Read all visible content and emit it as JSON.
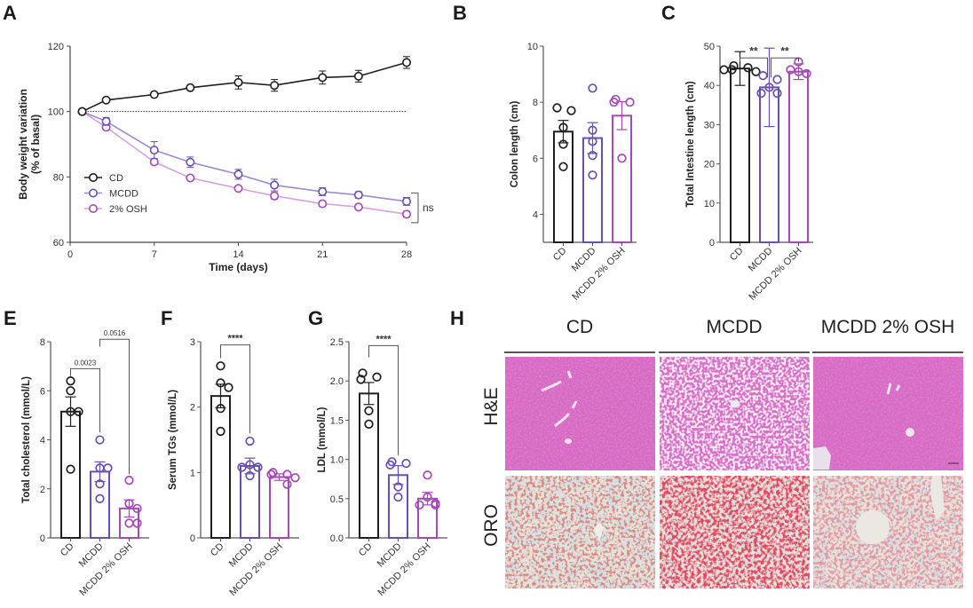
{
  "colors": {
    "CD": "#1f1f1f",
    "MCDD": "#6a4fb3",
    "OSH": "#a648b8",
    "OSH_line": "#d9a0e0",
    "MCDD_line": "#9d8bd0"
  },
  "panels": {
    "A": "A",
    "B": "B",
    "C": "C",
    "E": "E",
    "F": "F",
    "G": "G",
    "H": "H"
  },
  "chart_data": [
    {
      "id": "A",
      "type": "line",
      "title": "",
      "xlabel": "Time (days)",
      "ylabel": "Body weight variation (% of basal)",
      "ylabel_lines": [
        "Body weight variation",
        "(% of basal)"
      ],
      "xlim": [
        0,
        28
      ],
      "ylim": [
        60,
        120
      ],
      "xticks": [
        0,
        7,
        14,
        21,
        28
      ],
      "yticks": [
        60,
        80,
        100,
        120
      ],
      "x": [
        1,
        3,
        7,
        10,
        14,
        17,
        21,
        24,
        28
      ],
      "reference_line": 100,
      "legend": "bottom-left",
      "series": [
        {
          "name": "CD",
          "values": [
            100,
            103.5,
            105.2,
            107.3,
            108.9,
            108.0,
            110.4,
            110.8,
            115.0
          ],
          "err": [
            0,
            0.6,
            0.6,
            0.6,
            2.0,
            1.8,
            2.0,
            1.8,
            1.8
          ]
        },
        {
          "name": "MCDD",
          "values": [
            100,
            97.0,
            88.2,
            84.5,
            80.8,
            77.5,
            75.5,
            74.5,
            72.5
          ],
          "err": [
            0,
            1.2,
            2.6,
            1.6,
            1.5,
            1.8,
            1.2,
            1.0,
            1.2
          ]
        },
        {
          "name": "2% OSH",
          "values": [
            100,
            95.2,
            84.6,
            79.7,
            76.5,
            74.2,
            71.8,
            70.8,
            68.6
          ],
          "err": [
            0,
            0.6,
            0.8,
            0.6,
            0.6,
            1.0,
            0.8,
            0.8,
            0.9
          ]
        }
      ],
      "annotations": [
        {
          "text": "ns",
          "between": [
            "MCDD",
            "2% OSH"
          ],
          "at_x": 28
        }
      ]
    },
    {
      "id": "B",
      "type": "bar",
      "ylabel": "Colon length (cm)",
      "ylim": [
        3,
        10
      ],
      "yticks": [
        4,
        6,
        8,
        10
      ],
      "categories": [
        "CD",
        "MCDD",
        "MCDD 2% OSH"
      ],
      "values": [
        6.95,
        6.72,
        7.52
      ],
      "err": [
        0.4,
        0.55,
        0.5
      ],
      "points": [
        [
          7.8,
          7.7,
          7.1,
          6.5,
          5.7
        ],
        [
          8.5,
          7.0,
          6.6,
          6.1,
          5.4
        ],
        [
          8.1,
          8.0,
          8.0,
          6.0
        ]
      ],
      "annotations": []
    },
    {
      "id": "C",
      "type": "bar",
      "ylabel": "Total Intestine length (cm)",
      "ylim": [
        0,
        50
      ],
      "yticks": [
        0,
        10,
        20,
        30,
        40,
        50
      ],
      "categories": [
        "CD",
        "MCDD",
        "MCDD 2% OSH"
      ],
      "values": [
        44.3,
        39.5,
        43.5
      ],
      "err": [
        4.3,
        10.0,
        2.0
      ],
      "points": [
        [
          45.0,
          44.5,
          44.0,
          43.5,
          44.0
        ],
        [
          42.5,
          41.5,
          39.5,
          38.0,
          38.0
        ],
        [
          46.0,
          43.5,
          43.0,
          44.0
        ]
      ],
      "annotations": [
        {
          "text": "**",
          "from": "CD",
          "to": "MCDD"
        },
        {
          "text": "**",
          "from": "MCDD",
          "to": "MCDD 2% OSH"
        }
      ]
    },
    {
      "id": "E",
      "type": "bar",
      "ylabel": "Total cholesterol (mmol/L)",
      "ylim": [
        0,
        8
      ],
      "yticks": [
        0,
        2,
        4,
        6,
        8
      ],
      "categories": [
        "CD",
        "MCDD",
        "MCDD 2% OSH"
      ],
      "values": [
        5.15,
        2.7,
        1.2
      ],
      "err": [
        0.6,
        0.4,
        0.35
      ],
      "points": [
        [
          6.4,
          6.0,
          5.15,
          5.15,
          2.8
        ],
        [
          4.0,
          2.85,
          2.85,
          2.2,
          1.6
        ],
        [
          2.35,
          1.4,
          1.2,
          0.6,
          0.6
        ]
      ],
      "annotations": [
        {
          "text": "0.0023",
          "from": "CD",
          "to": "MCDD"
        },
        {
          "text": "0.0516",
          "from": "MCDD",
          "to": "MCDD 2% OSH"
        }
      ]
    },
    {
      "id": "F",
      "type": "bar",
      "ylabel": "Serum TGs (mmol/L)",
      "ylim": [
        0,
        3
      ],
      "yticks": [
        0,
        1,
        2,
        3
      ],
      "categories": [
        "CD",
        "MCDD",
        "MCDD 2% OSH"
      ],
      "values": [
        2.17,
        1.1,
        0.93
      ],
      "err": [
        0.18,
        0.12,
        0.05
      ],
      "points": [
        [
          2.63,
          2.37,
          2.3,
          1.98,
          1.63
        ],
        [
          1.48,
          1.12,
          1.08,
          1.08,
          0.95
        ],
        [
          1.0,
          0.97,
          0.97,
          0.92,
          0.82
        ]
      ],
      "annotations": [
        {
          "text": "****",
          "from": "CD",
          "to": "MCDD"
        }
      ]
    },
    {
      "id": "G",
      "type": "bar",
      "ylabel": "LDL (mmol/L)",
      "ylim": [
        0,
        2.5
      ],
      "yticks": [
        0.0,
        0.5,
        1.0,
        1.5,
        2.0,
        2.5
      ],
      "ytick_labels": [
        "0.0",
        "0.5",
        "1.0",
        "1.5",
        "2.0",
        "2.5"
      ],
      "categories": [
        "CD",
        "MCDD",
        "MCDD 2% OSH"
      ],
      "values": [
        1.84,
        0.8,
        0.5
      ],
      "err": [
        0.14,
        0.12,
        0.08
      ],
      "points": [
        [
          2.1,
          2.05,
          2.02,
          1.62,
          1.45
        ],
        [
          0.97,
          0.95,
          0.93,
          0.65,
          0.52
        ],
        [
          0.8,
          0.52,
          0.44,
          0.42,
          0.42
        ]
      ],
      "annotations": [
        {
          "text": "****",
          "from": "CD",
          "to": "MCDD"
        }
      ]
    }
  ],
  "histology": {
    "columns": [
      "CD",
      "MCDD",
      "MCDD 2% OSH"
    ],
    "rows": [
      "H&E",
      "ORO"
    ]
  }
}
